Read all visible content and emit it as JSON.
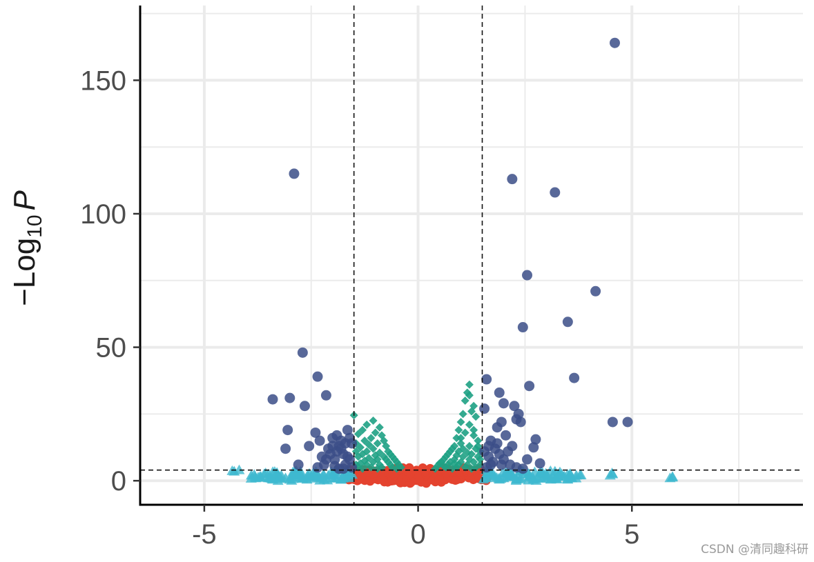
{
  "chart_data": {
    "type": "scatter",
    "title": "",
    "xlabel": "",
    "ylabel": {
      "prefix": "−Log",
      "subscript": "10",
      "suffix": "P"
    },
    "xlim": [
      -6.5,
      9
    ],
    "ylim": [
      -9,
      178
    ],
    "x_ticks": [
      {
        "value": -5,
        "label": "-5"
      },
      {
        "value": 0,
        "label": "0"
      },
      {
        "value": 5,
        "label": "5"
      }
    ],
    "y_ticks": [
      {
        "value": 0,
        "label": "0"
      },
      {
        "value": 50,
        "label": "50"
      },
      {
        "value": 100,
        "label": "100"
      },
      {
        "value": 150,
        "label": "150"
      }
    ],
    "grid": true,
    "legend": "none",
    "cutoffs": {
      "log2fc": [
        -1.5,
        1.5
      ],
      "neg_log10_p": 4
    },
    "colors": {
      "ns": "#e4432f",
      "pvalue": "#1ea184",
      "log2fc": "#3fb9cf",
      "both": "#3b4d87",
      "grid": "#ebebeb",
      "axis": "#000000"
    },
    "series": [
      {
        "group": "both",
        "shape": "circle",
        "points": [
          [
            4.6,
            164
          ],
          [
            -2.9,
            115
          ],
          [
            2.2,
            113
          ],
          [
            3.2,
            108
          ],
          [
            2.55,
            77
          ],
          [
            4.15,
            71
          ],
          [
            3.5,
            59.5
          ],
          [
            2.45,
            57.5
          ],
          [
            3.65,
            38.5
          ],
          [
            2.6,
            35.5
          ],
          [
            1.6,
            38
          ],
          [
            1.9,
            33
          ],
          [
            2.0,
            29
          ],
          [
            2.25,
            28
          ],
          [
            2.35,
            25
          ],
          [
            2.3,
            23
          ],
          [
            2.4,
            22
          ],
          [
            1.85,
            20
          ],
          [
            2.05,
            17
          ],
          [
            1.95,
            22
          ],
          [
            2.75,
            15.5
          ],
          [
            2.7,
            12.5
          ],
          [
            2.55,
            8
          ],
          [
            2.85,
            6.5
          ],
          [
            4.55,
            22
          ],
          [
            4.9,
            22
          ],
          [
            1.55,
            27
          ],
          [
            1.7,
            15
          ],
          [
            1.8,
            12
          ],
          [
            1.9,
            10
          ],
          [
            2.1,
            11
          ],
          [
            2.2,
            13
          ],
          [
            1.65,
            9
          ],
          [
            1.75,
            7
          ],
          [
            1.6,
            5
          ],
          [
            1.7,
            6
          ],
          [
            2.0,
            8
          ],
          [
            2.15,
            6
          ],
          [
            2.3,
            5
          ],
          [
            1.85,
            14
          ],
          [
            2.45,
            4.5
          ],
          [
            1.55,
            11
          ],
          [
            1.65,
            13
          ],
          [
            1.95,
            6
          ],
          [
            -2.7,
            48
          ],
          [
            -2.35,
            39
          ],
          [
            -2.15,
            32
          ],
          [
            -3.4,
            30.5
          ],
          [
            -3.0,
            31
          ],
          [
            -2.65,
            28
          ],
          [
            -3.05,
            19
          ],
          [
            -3.1,
            12
          ],
          [
            -2.8,
            6
          ],
          [
            -2.55,
            13
          ],
          [
            -2.4,
            18
          ],
          [
            -2.3,
            15
          ],
          [
            -2.25,
            9
          ],
          [
            -2.1,
            12
          ],
          [
            -2.05,
            10
          ],
          [
            -2.0,
            16
          ],
          [
            -1.95,
            8
          ],
          [
            -1.9,
            17
          ],
          [
            -1.85,
            13
          ],
          [
            -1.8,
            12
          ],
          [
            -1.75,
            10
          ],
          [
            -1.7,
            14
          ],
          [
            -1.65,
            19
          ],
          [
            -1.6,
            16
          ],
          [
            -1.55,
            14
          ],
          [
            -2.35,
            5
          ],
          [
            -2.2,
            6
          ],
          [
            -1.95,
            5.5
          ],
          [
            -1.85,
            4.5
          ],
          [
            -1.7,
            6
          ],
          [
            -1.6,
            8
          ],
          [
            -1.55,
            5
          ],
          [
            -2.0,
            13
          ],
          [
            -1.9,
            11
          ],
          [
            -1.8,
            15
          ],
          [
            -2.15,
            8
          ],
          [
            -1.75,
            4.5
          ],
          [
            -1.65,
            9
          ]
        ]
      },
      {
        "group": "pvalue",
        "shape": "diamond",
        "points": [
          [
            1.2,
            36
          ],
          [
            1.15,
            33
          ],
          [
            1.2,
            32
          ],
          [
            1.1,
            30
          ],
          [
            1.3,
            28
          ],
          [
            1.25,
            26
          ],
          [
            1.05,
            25
          ],
          [
            1.35,
            24
          ],
          [
            1.0,
            22
          ],
          [
            1.2,
            21
          ],
          [
            0.95,
            19
          ],
          [
            1.1,
            18
          ],
          [
            1.3,
            17
          ],
          [
            0.9,
            16
          ],
          [
            1.4,
            15
          ],
          [
            1.0,
            14
          ],
          [
            0.85,
            13
          ],
          [
            1.2,
            13
          ],
          [
            0.8,
            12
          ],
          [
            1.05,
            12
          ],
          [
            1.35,
            12
          ],
          [
            0.75,
            11
          ],
          [
            0.95,
            11
          ],
          [
            1.15,
            10.5
          ],
          [
            0.7,
            10
          ],
          [
            0.9,
            9.5
          ],
          [
            1.25,
            10
          ],
          [
            0.65,
            9
          ],
          [
            1.05,
            9
          ],
          [
            1.4,
            9
          ],
          [
            0.6,
            8
          ],
          [
            0.85,
            8
          ],
          [
            1.2,
            8
          ],
          [
            0.55,
            7
          ],
          [
            0.75,
            7
          ],
          [
            1.0,
            7
          ],
          [
            1.3,
            7
          ],
          [
            0.5,
            6.5
          ],
          [
            0.7,
            6
          ],
          [
            0.95,
            6
          ],
          [
            1.15,
            6
          ],
          [
            1.45,
            6
          ],
          [
            0.45,
            5.5
          ],
          [
            0.65,
            5
          ],
          [
            0.9,
            5
          ],
          [
            1.1,
            5
          ],
          [
            1.35,
            5
          ],
          [
            0.4,
            4.5
          ],
          [
            0.8,
            4.5
          ],
          [
            1.25,
            4.5
          ],
          [
            1.45,
            11
          ],
          [
            1.4,
            13
          ],
          [
            1.3,
            19
          ],
          [
            1.45,
            8
          ],
          [
            0.6,
            5.5
          ],
          [
            0.85,
            6.5
          ],
          [
            1.0,
            16
          ],
          [
            -1.5,
            24.5
          ],
          [
            -1.05,
            22.5
          ],
          [
            -1.2,
            21
          ],
          [
            -0.9,
            20
          ],
          [
            -1.3,
            19
          ],
          [
            -1.0,
            18
          ],
          [
            -1.4,
            17.5
          ],
          [
            -0.85,
            17
          ],
          [
            -1.1,
            16
          ],
          [
            -1.25,
            15
          ],
          [
            -0.8,
            15
          ],
          [
            -1.45,
            14
          ],
          [
            -0.95,
            14
          ],
          [
            -1.15,
            13.5
          ],
          [
            -0.75,
            13
          ],
          [
            -1.35,
            12.5
          ],
          [
            -1.05,
            12
          ],
          [
            -0.7,
            11
          ],
          [
            -1.2,
            11
          ],
          [
            -1.45,
            11
          ],
          [
            -0.9,
            10.5
          ],
          [
            -0.65,
            10
          ],
          [
            -1.3,
            10
          ],
          [
            -1.0,
            9.5
          ],
          [
            -0.6,
            9
          ],
          [
            -0.8,
            9
          ],
          [
            -1.4,
            9
          ],
          [
            -1.15,
            8.5
          ],
          [
            -0.55,
            8
          ],
          [
            -0.75,
            8
          ],
          [
            -0.95,
            8
          ],
          [
            -1.25,
            7.5
          ],
          [
            -0.5,
            7
          ],
          [
            -0.7,
            7
          ],
          [
            -1.05,
            7
          ],
          [
            -1.35,
            6.5
          ],
          [
            -0.45,
            6
          ],
          [
            -0.65,
            6
          ],
          [
            -0.9,
            6
          ],
          [
            -1.2,
            6
          ],
          [
            -1.45,
            6
          ],
          [
            -0.4,
            5
          ],
          [
            -0.6,
            5
          ],
          [
            -0.85,
            5
          ],
          [
            -1.1,
            5
          ],
          [
            -1.4,
            5
          ],
          [
            -0.5,
            4.5
          ],
          [
            -0.95,
            4.5
          ],
          [
            -1.3,
            4.5
          ]
        ]
      },
      {
        "group": "log2fc",
        "shape": "triangle",
        "points": [
          [
            -4.3,
            3.5
          ],
          [
            -3.9,
            2
          ],
          [
            -3.7,
            1.5
          ],
          [
            -3.5,
            1
          ],
          [
            -3.3,
            1.5
          ],
          [
            -3.1,
            1
          ],
          [
            -2.9,
            2
          ],
          [
            -2.7,
            1
          ],
          [
            -2.5,
            1.5
          ],
          [
            -2.3,
            1
          ],
          [
            -2.1,
            2
          ],
          [
            -1.9,
            1
          ],
          [
            -1.7,
            1.5
          ],
          [
            -3.6,
            2.5
          ],
          [
            -3.2,
            2
          ],
          [
            -2.8,
            2.5
          ],
          [
            -2.4,
            2
          ],
          [
            -2.0,
            2.5
          ],
          [
            -1.6,
            2.5
          ],
          [
            -3.8,
            1
          ],
          [
            -3.4,
            0.5
          ],
          [
            -3.0,
            0.5
          ],
          [
            -2.6,
            0.5
          ],
          [
            -2.2,
            0.5
          ],
          [
            -1.8,
            0.5
          ],
          [
            -2.45,
            3
          ],
          [
            -1.95,
            3.5
          ],
          [
            -2.75,
            3.5
          ],
          [
            -1.7,
            3.5
          ],
          [
            -3.3,
            3
          ],
          [
            -2.9,
            3
          ],
          [
            1.6,
            1
          ],
          [
            1.8,
            1.5
          ],
          [
            2.0,
            1
          ],
          [
            2.2,
            2
          ],
          [
            2.4,
            1
          ],
          [
            2.6,
            1.5
          ],
          [
            2.8,
            1
          ],
          [
            3.0,
            2
          ],
          [
            3.2,
            1
          ],
          [
            3.4,
            1.5
          ],
          [
            3.6,
            1
          ],
          [
            1.7,
            2.5
          ],
          [
            2.1,
            2.5
          ],
          [
            2.5,
            2.5
          ],
          [
            2.9,
            2.5
          ],
          [
            3.3,
            2.5
          ],
          [
            3.7,
            2
          ],
          [
            1.9,
            0.5
          ],
          [
            2.3,
            0.5
          ],
          [
            2.7,
            0.5
          ],
          [
            3.1,
            0.5
          ],
          [
            3.5,
            0.5
          ],
          [
            3.2,
            3.5
          ],
          [
            3.55,
            2.5
          ],
          [
            1.65,
            3.5
          ],
          [
            2.05,
            3
          ],
          [
            2.45,
            3.5
          ],
          [
            2.85,
            3
          ],
          [
            4.55,
            2.5
          ],
          [
            5.95,
            1.5
          ]
        ]
      },
      {
        "group": "ns",
        "shape": "circle",
        "density": "dense",
        "points": [
          [
            -1.45,
            3.5
          ],
          [
            -1.3,
            3
          ],
          [
            -1.1,
            2.5
          ],
          [
            -0.9,
            2
          ],
          [
            -0.7,
            1.5
          ],
          [
            -0.5,
            1
          ],
          [
            -0.3,
            0.8
          ],
          [
            -0.1,
            0.5
          ],
          [
            0.1,
            0.5
          ],
          [
            0.3,
            0.8
          ],
          [
            0.5,
            1
          ],
          [
            0.7,
            1.5
          ],
          [
            0.9,
            2
          ],
          [
            1.1,
            2.5
          ],
          [
            1.3,
            3
          ],
          [
            1.45,
            3.5
          ],
          [
            -1.4,
            1
          ],
          [
            -1.2,
            1.2
          ],
          [
            -1.0,
            0.8
          ],
          [
            -0.8,
            0.6
          ],
          [
            -0.6,
            0.5
          ],
          [
            -0.4,
            0.4
          ],
          [
            -0.2,
            0.3
          ],
          [
            0.0,
            0.2
          ],
          [
            0.2,
            0.3
          ],
          [
            0.4,
            0.4
          ],
          [
            0.6,
            0.5
          ],
          [
            0.8,
            0.6
          ],
          [
            1.0,
            0.8
          ],
          [
            1.2,
            1.2
          ],
          [
            1.4,
            1
          ],
          [
            -1.35,
            2
          ],
          [
            -1.15,
            1.8
          ],
          [
            -0.95,
            1.2
          ],
          [
            -0.75,
            1
          ],
          [
            -0.55,
            2
          ],
          [
            -0.35,
            2.5
          ],
          [
            -0.2,
            3
          ],
          [
            -0.05,
            2.8
          ],
          [
            0.05,
            2.5
          ],
          [
            0.2,
            1.5
          ],
          [
            0.35,
            1.2
          ],
          [
            0.55,
            2.2
          ],
          [
            0.75,
            2.8
          ],
          [
            0.95,
            3
          ],
          [
            1.15,
            3.5
          ],
          [
            1.35,
            2
          ],
          [
            -1.0,
            3.5
          ],
          [
            -0.8,
            3.2
          ],
          [
            -0.6,
            3.5
          ],
          [
            0.6,
            3.4
          ],
          [
            0.8,
            3.6
          ],
          [
            1.0,
            3.8
          ],
          [
            -1.25,
            3.8
          ],
          [
            1.25,
            3.8
          ],
          [
            -0.45,
            3.9
          ],
          [
            0.45,
            3.9
          ],
          [
            -0.25,
            3.6
          ],
          [
            0.25,
            3.6
          ],
          [
            -1.48,
            0.5
          ],
          [
            1.48,
            0.5
          ],
          [
            -1.48,
            2.5
          ],
          [
            1.48,
            2.5
          ]
        ]
      }
    ]
  },
  "watermark": "CSDN @清同趣科研"
}
